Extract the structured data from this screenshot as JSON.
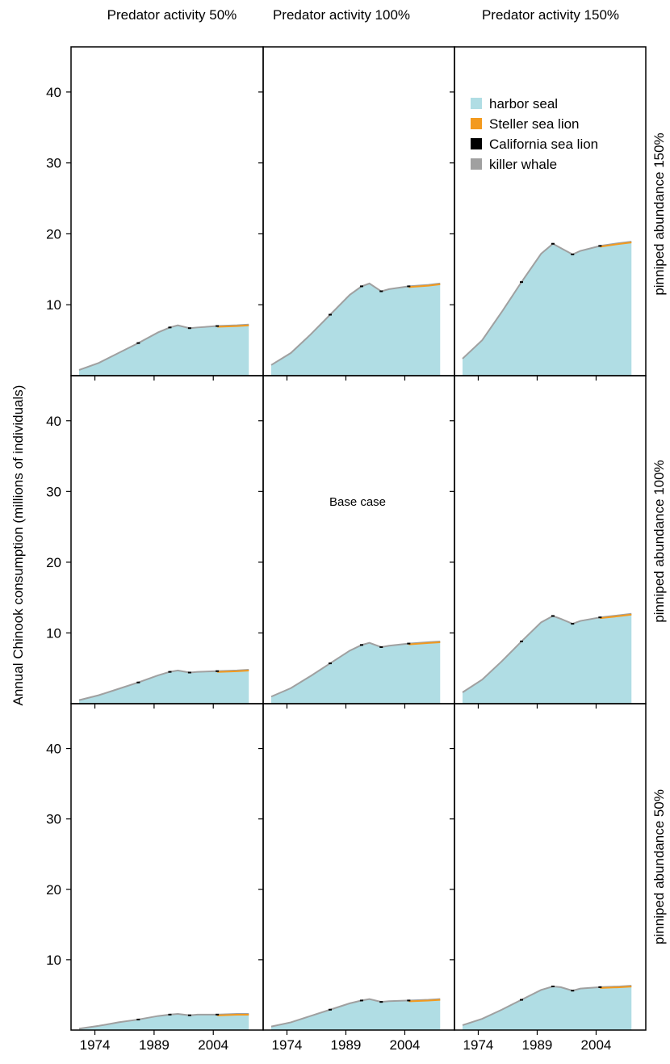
{
  "chart_data": {
    "type": "area",
    "stacked": true,
    "layout": "3x3 facet grid",
    "ylabel": "Annual Chinook consumption (millions of individuals)",
    "xlabel": "",
    "xlim": [
      1970,
      2015
    ],
    "ylim": [
      0,
      45
    ],
    "x_ticks": [
      1974,
      1989,
      2004
    ],
    "y_ticks": [
      10,
      20,
      30,
      40
    ],
    "grid": false,
    "column_labels": [
      "Predator activity 50%",
      "Predator activity 100%",
      "Predator activity 150%"
    ],
    "row_labels": [
      "pinniped abundance 150%",
      "pinniped abundance 100%",
      "pinniped abundance 50%"
    ],
    "legend": {
      "position": "top-right panel, upper area",
      "entries": [
        {
          "label": "harbor seal",
          "color": "#b0dde4"
        },
        {
          "label": "Steller sea lion",
          "color": "#f39a1e"
        },
        {
          "label": "California sea lion",
          "color": "#000000"
        },
        {
          "label": "killer whale",
          "color": "#a0a0a0"
        }
      ]
    },
    "annotation": {
      "text": "Base case",
      "panel": "row 2, column 2"
    },
    "x": [
      1970,
      1975,
      1980,
      1985,
      1990,
      1993,
      1995,
      1998,
      2000,
      2005,
      2010,
      2013
    ],
    "panels": [
      {
        "row": 1,
        "col": 1,
        "total": [
          0.8,
          1.8,
          3.2,
          4.6,
          6.1,
          6.8,
          7.1,
          6.7,
          6.8,
          7.0,
          7.1,
          7.2
        ]
      },
      {
        "row": 1,
        "col": 2,
        "total": [
          1.5,
          3.2,
          5.8,
          8.6,
          11.4,
          12.6,
          13.0,
          11.9,
          12.2,
          12.6,
          12.8,
          13.0
        ]
      },
      {
        "row": 1,
        "col": 3,
        "total": [
          2.4,
          5.0,
          9.0,
          13.2,
          17.2,
          18.6,
          18.0,
          17.1,
          17.6,
          18.3,
          18.7,
          18.9
        ]
      },
      {
        "row": 2,
        "col": 1,
        "total": [
          0.5,
          1.2,
          2.1,
          3.0,
          4.0,
          4.5,
          4.7,
          4.4,
          4.5,
          4.6,
          4.7,
          4.8
        ]
      },
      {
        "row": 2,
        "col": 2,
        "total": [
          1.0,
          2.2,
          3.9,
          5.7,
          7.5,
          8.3,
          8.6,
          8.0,
          8.2,
          8.5,
          8.7,
          8.8
        ]
      },
      {
        "row": 2,
        "col": 3,
        "total": [
          1.6,
          3.4,
          6.0,
          8.8,
          11.5,
          12.4,
          12.0,
          11.3,
          11.7,
          12.2,
          12.5,
          12.7
        ]
      },
      {
        "row": 3,
        "col": 1,
        "total": [
          0.2,
          0.6,
          1.1,
          1.5,
          2.0,
          2.2,
          2.3,
          2.1,
          2.2,
          2.2,
          2.3,
          2.3
        ]
      },
      {
        "row": 3,
        "col": 2,
        "total": [
          0.5,
          1.1,
          2.0,
          2.9,
          3.8,
          4.2,
          4.4,
          4.0,
          4.1,
          4.2,
          4.3,
          4.4
        ]
      },
      {
        "row": 3,
        "col": 3,
        "total": [
          0.7,
          1.6,
          2.9,
          4.3,
          5.7,
          6.2,
          6.1,
          5.6,
          5.9,
          6.1,
          6.2,
          6.3
        ]
      }
    ]
  }
}
